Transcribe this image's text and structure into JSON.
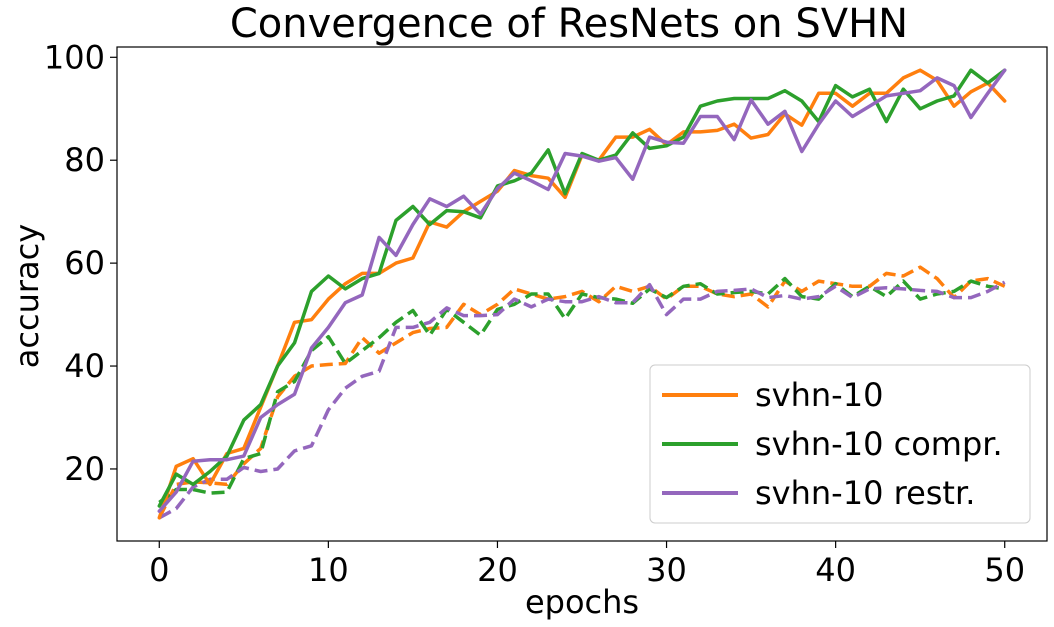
{
  "chart_data": {
    "type": "line",
    "title": "Convergence of ResNets on SVHN",
    "xlabel": "epochs",
    "ylabel": "accuracy",
    "xlim": [
      -2.5,
      52.5
    ],
    "ylim": [
      6,
      102
    ],
    "xticks": [
      0,
      10,
      20,
      30,
      40,
      50
    ],
    "yticks": [
      20,
      40,
      60,
      80,
      100
    ],
    "grid": false,
    "legend_position": "lower-right",
    "legend": [
      {
        "label": "svhn-10",
        "color": "#ff7f0e"
      },
      {
        "label": "svhn-10 compr.",
        "color": "#2ca02c"
      },
      {
        "label": "svhn-10 restr.",
        "color": "#9467bd"
      }
    ],
    "x": [
      0,
      1,
      2,
      3,
      4,
      5,
      6,
      7,
      8,
      9,
      10,
      11,
      12,
      13,
      14,
      15,
      16,
      17,
      18,
      19,
      20,
      21,
      22,
      23,
      24,
      25,
      26,
      27,
      28,
      29,
      30,
      31,
      32,
      33,
      34,
      35,
      36,
      37,
      38,
      39,
      40,
      41,
      42,
      43,
      44,
      45,
      46,
      47,
      48,
      49,
      50
    ],
    "series": [
      {
        "color": "#ff7f0e",
        "style": "solid",
        "values": [
          10.5,
          20.5,
          22,
          17,
          23,
          24,
          32,
          40,
          48.5,
          49,
          53,
          56,
          58,
          58,
          60,
          61,
          68,
          67,
          70,
          72,
          74,
          78,
          77,
          76.5,
          72.8,
          81,
          80,
          84.5,
          84.5,
          86,
          83,
          85.5,
          85.5,
          85.8,
          87,
          84.3,
          85,
          89,
          86.8,
          93,
          93,
          90.5,
          93,
          93,
          96,
          97.5,
          95.5,
          90.5,
          93.3,
          95,
          91.5
        ]
      },
      {
        "color": "#2ca02c",
        "style": "solid",
        "values": [
          12.8,
          19,
          17,
          19.5,
          22.5,
          29.5,
          32.5,
          40,
          44.5,
          54.5,
          57.5,
          55,
          57,
          58,
          68.3,
          71,
          67.5,
          70.2,
          70,
          68.8,
          75,
          76,
          77.5,
          82,
          73.5,
          81.3,
          80,
          81,
          85.3,
          82.3,
          82.8,
          84.5,
          90.5,
          91.5,
          92,
          92,
          92,
          93.5,
          91.5,
          87.5,
          94.5,
          92.3,
          93.8,
          87.5,
          93.8,
          90,
          91.5,
          92.5,
          97.5,
          95,
          97.5
        ]
      },
      {
        "color": "#9467bd",
        "style": "solid",
        "values": [
          11.8,
          15.5,
          21.5,
          21.8,
          21.8,
          22.5,
          30,
          32.5,
          34.5,
          43.5,
          47.5,
          52.3,
          53.8,
          65,
          61.5,
          67.5,
          72.5,
          71,
          73,
          69.5,
          74.5,
          77.5,
          76,
          74.3,
          81.3,
          80.8,
          79.8,
          80.5,
          76.3,
          84.5,
          83.5,
          83.3,
          88.5,
          88.5,
          84,
          91.7,
          87,
          89.5,
          81.7,
          87,
          91.5,
          88.5,
          90.5,
          92.5,
          93,
          93.5,
          96,
          94.5,
          88.3,
          93,
          97.5
        ]
      },
      {
        "color": "#ff7f0e",
        "style": "dashed",
        "values": [
          10.5,
          17,
          17.5,
          17.3,
          17,
          21,
          24,
          34,
          38,
          40,
          40.3,
          40.5,
          45.5,
          42.5,
          44.5,
          46.5,
          47.3,
          47.5,
          52,
          50,
          52,
          55,
          54,
          53,
          53.5,
          54.5,
          52.5,
          55.5,
          54.5,
          55.5,
          53,
          55.5,
          55.5,
          54,
          53.5,
          54,
          51.5,
          56.5,
          54.5,
          56.5,
          56,
          55.5,
          55.5,
          58,
          57.5,
          59.2,
          57,
          53.3,
          56.5,
          57,
          55.5
        ]
      },
      {
        "color": "#2ca02c",
        "style": "dashed",
        "values": [
          13.5,
          16,
          16,
          15.3,
          15.5,
          22,
          23,
          35,
          37,
          43,
          45.7,
          40.5,
          43,
          45.5,
          48.5,
          50.8,
          46,
          51,
          48.5,
          46,
          51,
          52,
          54,
          54,
          49.2,
          54,
          53.3,
          53,
          52.2,
          55,
          53.3,
          55.5,
          56,
          54,
          54.3,
          54.5,
          54,
          57,
          53.5,
          53,
          56,
          53.5,
          55.5,
          53.5,
          56.5,
          53,
          54,
          54.5,
          56.5,
          55.5,
          55
        ]
      },
      {
        "color": "#9467bd",
        "style": "dashed",
        "values": [
          10.5,
          12.3,
          16.5,
          18,
          18,
          20.3,
          19.5,
          20,
          23.5,
          24.5,
          31.5,
          35.7,
          38,
          39,
          47.5,
          47.5,
          48.5,
          51.3,
          49.8,
          49.8,
          50,
          53,
          51.5,
          53,
          52.5,
          52.5,
          53.5,
          52.3,
          52.3,
          55.8,
          50,
          53,
          53,
          54.5,
          54.7,
          55,
          53.3,
          53.7,
          53,
          53.5,
          55.5,
          53.3,
          55,
          55.2,
          55,
          54.7,
          54.5,
          53.3,
          53.3,
          54.5,
          56.3
        ]
      }
    ]
  }
}
